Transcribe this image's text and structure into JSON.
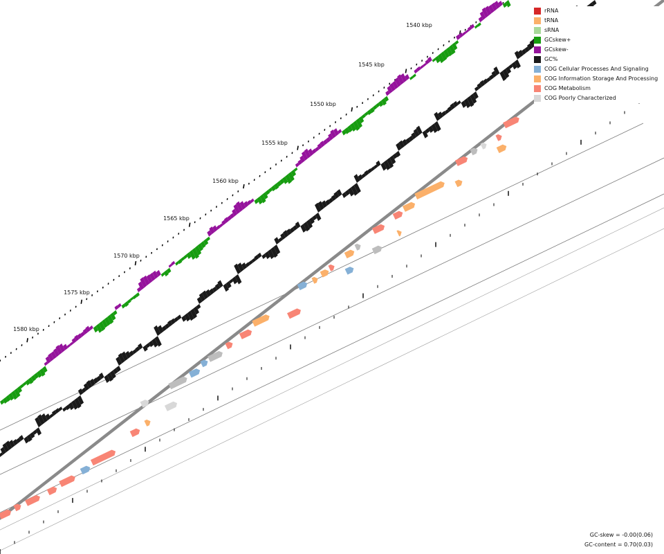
{
  "legend": [
    {
      "label": "rRNA",
      "color": "#d62728",
      "icon": "rrna-swatch"
    },
    {
      "label": "tRNA",
      "color": "#fbb06a",
      "icon": "trna-swatch"
    },
    {
      "label": "sRNA",
      "color": "#a8d99a",
      "icon": "srna-swatch"
    },
    {
      "label": "GCskew+",
      "color": "#179c10",
      "icon": "gcskew-positive-swatch"
    },
    {
      "label": "GCskew-",
      "color": "#95139c",
      "icon": "gcskew-negative-swatch"
    },
    {
      "label": "GC%",
      "color": "#1a1a1a",
      "icon": "gc-content-swatch"
    },
    {
      "label": "COG Cellular Processes And Signaling",
      "color": "#85b0d6",
      "icon": "cog-cellular-swatch"
    },
    {
      "label": "COG Information Storage And Processing",
      "color": "#fbb06a",
      "icon": "cog-information-swatch"
    },
    {
      "label": "COG Metabolism",
      "color": "#f88575",
      "icon": "cog-metabolism-swatch"
    },
    {
      "label": "COG Poorly Characterized",
      "color": "#d8d8d8",
      "icon": "cog-poorly-swatch"
    }
  ],
  "position_labels": [
    "1540 kbp",
    "1545 kbp",
    "1550 kbp",
    "1555 kbp",
    "1560 kbp",
    "1565 kbp",
    "1570 kbp",
    "1575 kbp",
    "1580 kbp"
  ],
  "stats": {
    "gc_skew": "GC-skew = -0.00(0.06)",
    "gc_content": "GC-content = 0.70(0.03)"
  }
}
